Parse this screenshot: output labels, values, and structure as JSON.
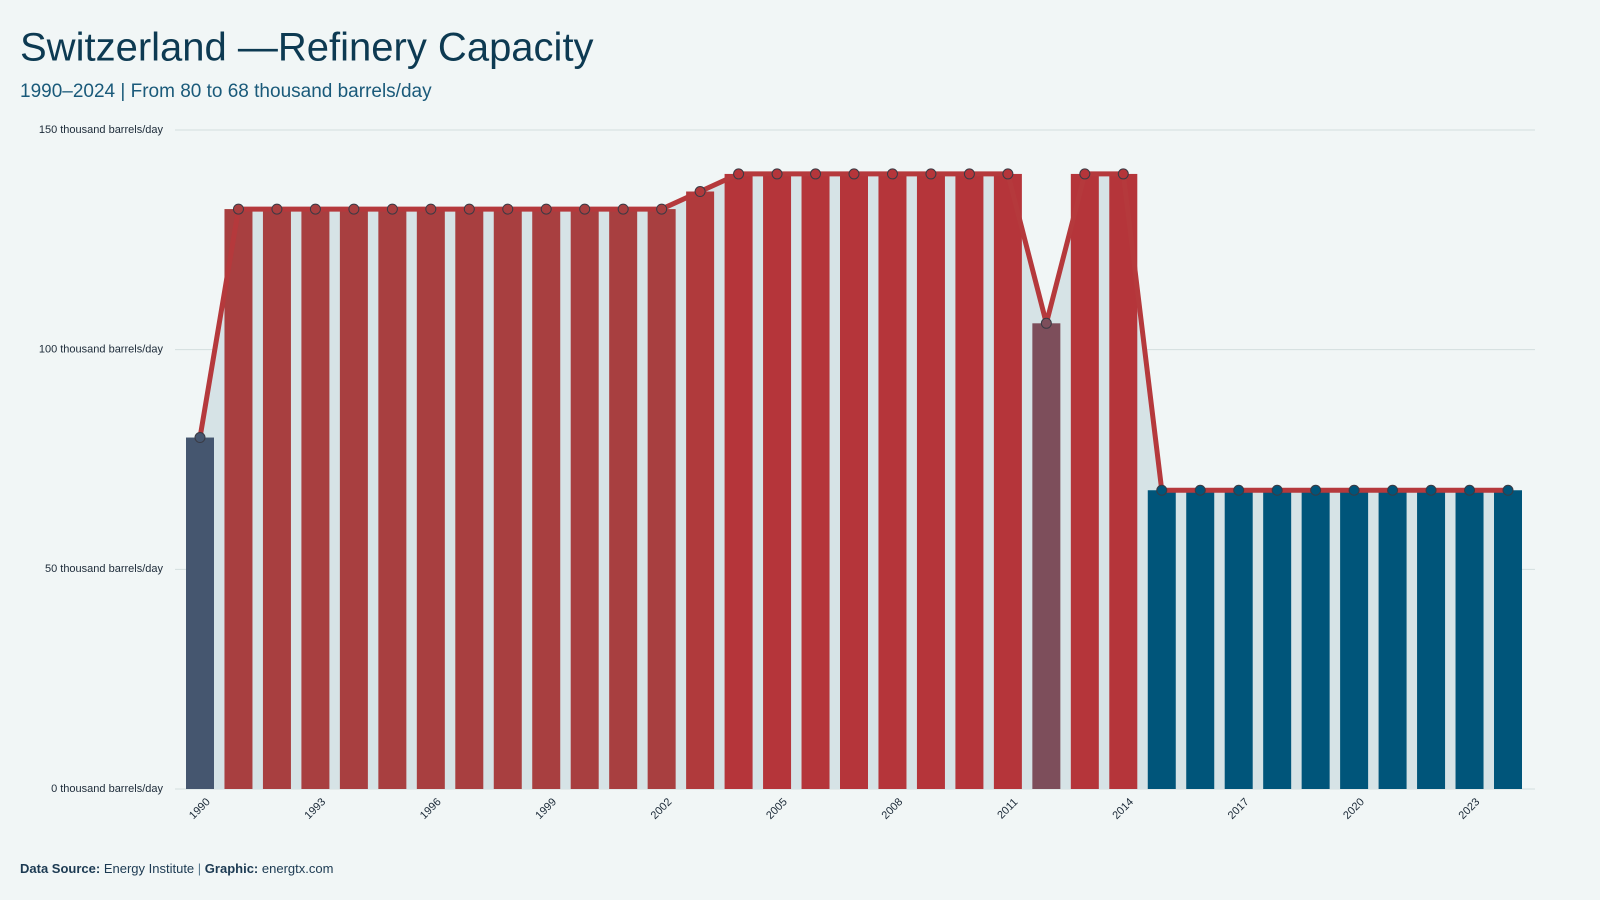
{
  "chart_data": {
    "type": "bar-line",
    "title": "Switzerland —Refinery Capacity",
    "subtitle": "1990–2024 | From 80 to 68 thousand barrels/day",
    "categories": [
      "1990",
      null,
      null,
      "1993",
      null,
      null,
      "1996",
      null,
      null,
      "1999",
      null,
      null,
      "2002",
      null,
      null,
      "2005",
      null,
      null,
      "2008",
      null,
      null,
      "2011",
      null,
      null,
      "2014",
      null,
      null,
      "2017",
      null,
      null,
      "2020",
      null,
      null,
      "2023",
      null
    ],
    "values": [
      80,
      132,
      132,
      132,
      132,
      132,
      132,
      132,
      132,
      132,
      132,
      132,
      132,
      136,
      140,
      140,
      140,
      140,
      140,
      140,
      140,
      140,
      106,
      140,
      140,
      68,
      68,
      68,
      68,
      68,
      68,
      68,
      68,
      68,
      68
    ],
    "colors": [
      "#45566f",
      "#a83f40",
      "#a83f40",
      "#a83f40",
      "#a83f40",
      "#a83f40",
      "#a83f40",
      "#a83f40",
      "#a83f40",
      "#a83f40",
      "#a83f40",
      "#a83f40",
      "#a83f40",
      "#b03a3c",
      "#b5353a",
      "#b5353a",
      "#b5353a",
      "#b5353a",
      "#b5353a",
      "#b5353a",
      "#b5353a",
      "#b5353a",
      "#7d4e5b",
      "#b5353a",
      "#b5353a",
      "#00557a",
      "#00557a",
      "#00557a",
      "#00557a",
      "#00557a",
      "#00557a",
      "#00557a",
      "#00557a",
      "#00557a",
      "#00557a"
    ],
    "line_color": "#b5393c",
    "area_color": "#d6e3e6",
    "ylim": [
      0,
      150
    ],
    "yticks": [
      {
        "value": 0,
        "label": "0 thousand barrels/day"
      },
      {
        "value": 50,
        "label": "50 thousand barrels/day"
      },
      {
        "value": 100,
        "label": "100 thousand barrels/day"
      },
      {
        "value": 150,
        "label": "150 thousand barrels/day"
      }
    ],
    "grid": true,
    "footer": {
      "source_label": "Data Source:",
      "source": "Energy Institute",
      "separator": "|",
      "graphic_label": "Graphic:",
      "graphic": "energtx.com"
    }
  }
}
